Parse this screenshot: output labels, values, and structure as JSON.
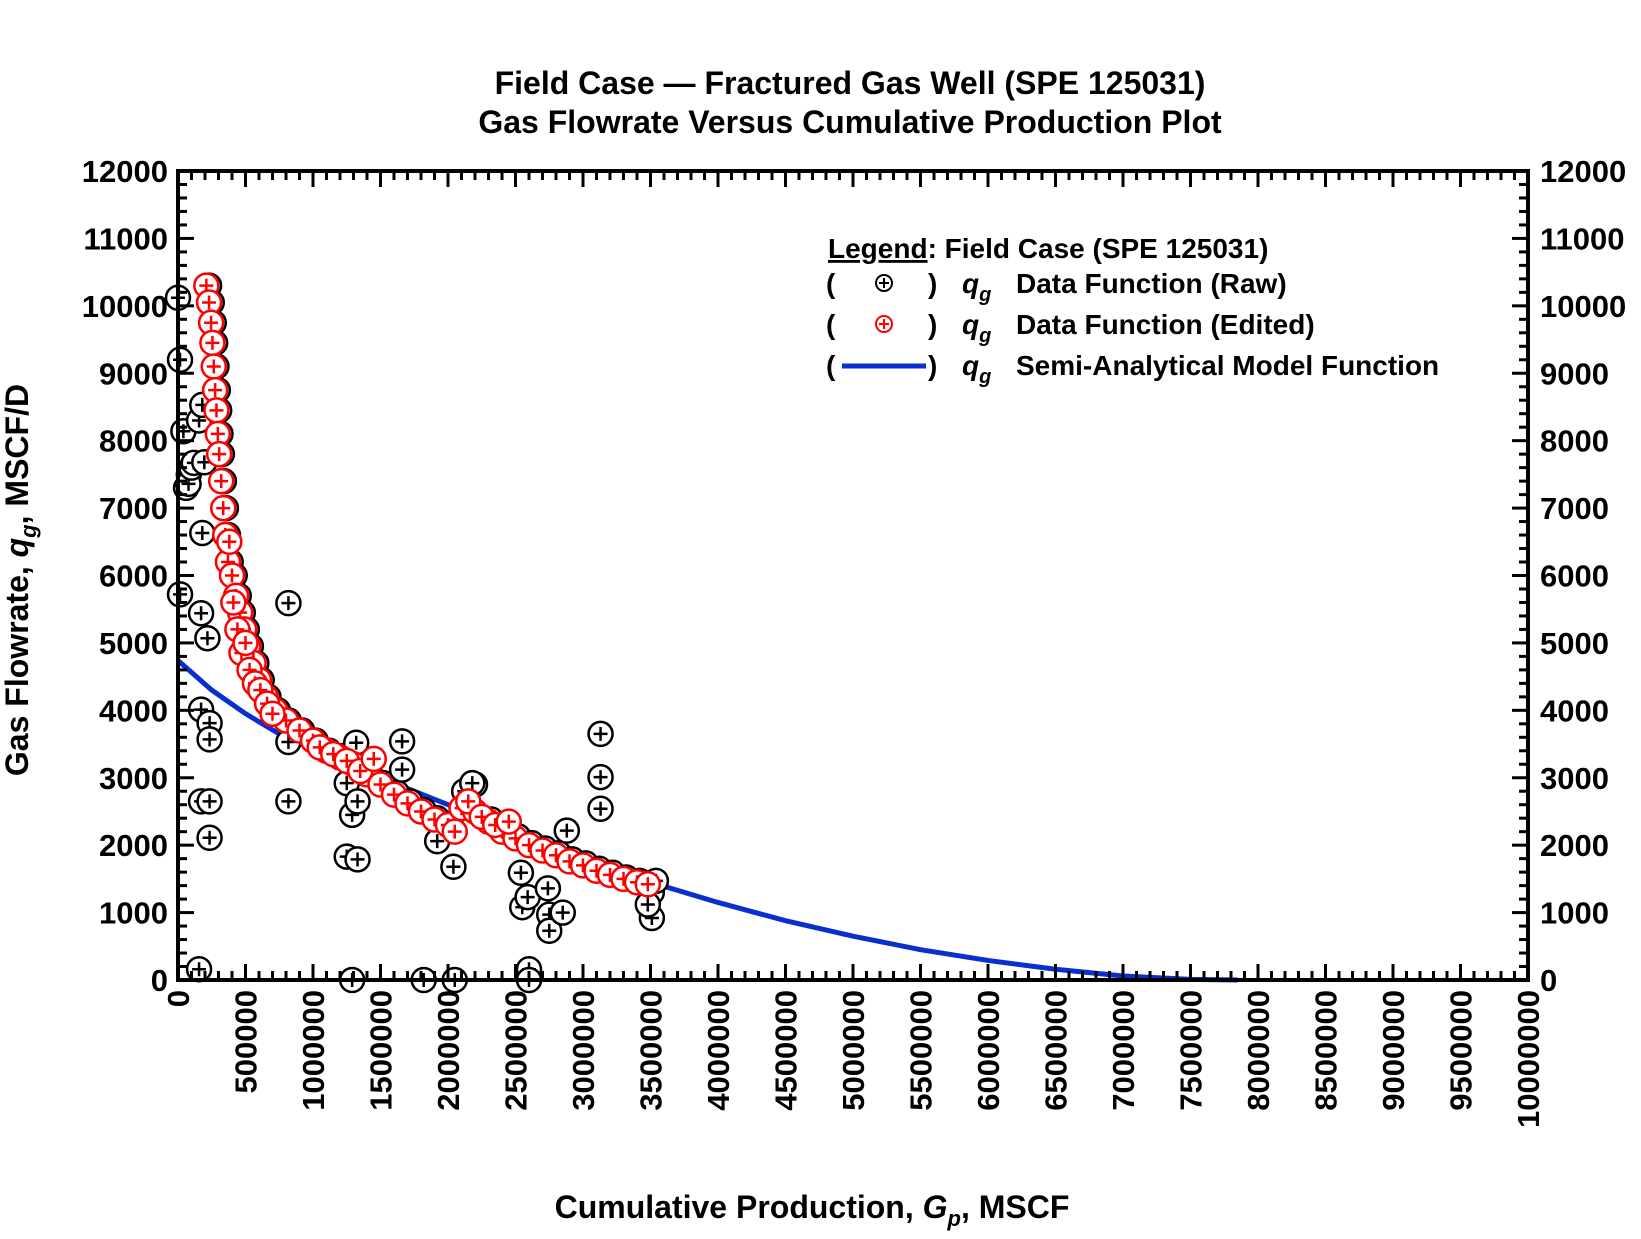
{
  "chart_data": {
    "type": "scatter",
    "title": "Field Case — Fractured Gas Well (SPE 125031)",
    "subtitle": "Gas Flowrate Versus Cumulative Production Plot",
    "xlabel": {
      "prefix": "Cumulative Production, ",
      "symbol": "G",
      "sub": "p",
      "suffix": ", MSCF"
    },
    "ylabel": {
      "prefix": "Gas Flowrate, ",
      "symbol": "q",
      "sub": "g",
      "suffix": ", MSCF/D"
    },
    "xlim": [
      0,
      10000000
    ],
    "ylim": [
      0,
      12000
    ],
    "x_ticks": [
      "0",
      "500000",
      "1000000",
      "1500000",
      "2000000",
      "2500000",
      "3000000",
      "3500000",
      "4000000",
      "4500000",
      "5000000",
      "5500000",
      "6000000",
      "6500000",
      "7000000",
      "7500000",
      "8000000",
      "8500000",
      "9000000",
      "9500000",
      "10000000"
    ],
    "y_ticks": [
      "0",
      "1000",
      "2000",
      "3000",
      "4000",
      "5000",
      "6000",
      "7000",
      "8000",
      "9000",
      "10000",
      "11000",
      "12000"
    ],
    "grid": false,
    "legend": {
      "placement": "top-right",
      "heading": "Legend",
      "heading_suffix": ":  Field Case (SPE 125031)",
      "entries": [
        {
          "symbol": "q",
          "sub": "g",
          "label": "Data Function (Raw)"
        },
        {
          "symbol": "q",
          "sub": "g",
          "label": "Data Function (Edited)"
        },
        {
          "symbol": "q",
          "sub": "g",
          "label": "Semi-Analytical Model Function"
        }
      ]
    },
    "colors": {
      "raw": "#000000",
      "edited": "#ff0000",
      "model": "#0a2fd0"
    },
    "series": [
      {
        "name": "Data Function (Raw)",
        "marker": "circle-plus",
        "points": [
          [
            0,
            10120
          ],
          [
            15000,
            9200
          ],
          [
            15000,
            5720
          ],
          [
            40000,
            8140
          ],
          [
            60000,
            7300
          ],
          [
            80000,
            7500
          ],
          [
            78000,
            7360
          ],
          [
            100000,
            7600
          ],
          [
            117000,
            7670
          ],
          [
            156000,
            8300
          ],
          [
            180000,
            8530
          ],
          [
            195000,
            7680
          ],
          [
            180000,
            6630
          ],
          [
            171000,
            5440
          ],
          [
            218000,
            5070
          ],
          [
            171000,
            4010
          ],
          [
            234000,
            3810
          ],
          [
            234000,
            3570
          ],
          [
            171000,
            2650
          ],
          [
            234000,
            2650
          ],
          [
            234000,
            2110
          ],
          [
            156000,
            160
          ],
          [
            230000,
            10300
          ],
          [
            250000,
            10050
          ],
          [
            265000,
            9750
          ],
          [
            275000,
            9450
          ],
          [
            285000,
            9100
          ],
          [
            295000,
            8750
          ],
          [
            305000,
            8450
          ],
          [
            315000,
            8100
          ],
          [
            325000,
            7800
          ],
          [
            340000,
            7400
          ],
          [
            355000,
            7000
          ],
          [
            370000,
            6600
          ],
          [
            390000,
            6200
          ],
          [
            420000,
            6000
          ],
          [
            450000,
            5700
          ],
          [
            480000,
            5450
          ],
          [
            510000,
            5200
          ],
          [
            540000,
            4950
          ],
          [
            580000,
            4700
          ],
          [
            620000,
            4450
          ],
          [
            670000,
            4200
          ],
          [
            740000,
            4000
          ],
          [
            820000,
            3850
          ],
          [
            920000,
            3700
          ],
          [
            1020000,
            3550
          ],
          [
            1120000,
            3400
          ],
          [
            1220000,
            3320
          ],
          [
            1320000,
            3520
          ],
          [
            1420000,
            3080
          ],
          [
            1520000,
            2920
          ],
          [
            1620000,
            2780
          ],
          [
            1720000,
            2650
          ],
          [
            1820000,
            2520
          ],
          [
            1920000,
            2400
          ],
          [
            2020000,
            2320
          ],
          [
            2120000,
            2800
          ],
          [
            2200000,
            2900
          ],
          [
            2320000,
            2380
          ],
          [
            2420000,
            2250
          ],
          [
            2520000,
            2130
          ],
          [
            2620000,
            2030
          ],
          [
            2720000,
            1950
          ],
          [
            2820000,
            1880
          ],
          [
            2920000,
            1790
          ],
          [
            3020000,
            1730
          ],
          [
            3120000,
            1650
          ],
          [
            3220000,
            1590
          ],
          [
            3320000,
            1520
          ],
          [
            3420000,
            1470
          ],
          [
            3510000,
            1300
          ],
          [
            818000,
            5590
          ],
          [
            818000,
            3530
          ],
          [
            818000,
            2650
          ],
          [
            1250000,
            2920
          ],
          [
            1290000,
            2450
          ],
          [
            1250000,
            1830
          ],
          [
            1330000,
            1790
          ],
          [
            1290000,
            0
          ],
          [
            1330000,
            2650
          ],
          [
            1660000,
            3540
          ],
          [
            1660000,
            3120
          ],
          [
            1820000,
            0
          ],
          [
            1920000,
            2060
          ],
          [
            2040000,
            1680
          ],
          [
            2050000,
            0
          ],
          [
            2180000,
            2920
          ],
          [
            2540000,
            1590
          ],
          [
            2550000,
            1080
          ],
          [
            2590000,
            1230
          ],
          [
            2600000,
            160
          ],
          [
            2600000,
            0
          ],
          [
            2750000,
            970
          ],
          [
            2750000,
            730
          ],
          [
            2850000,
            1000
          ],
          [
            2740000,
            1360
          ],
          [
            2880000,
            2215
          ],
          [
            3130000,
            3650
          ],
          [
            3130000,
            3010
          ],
          [
            3130000,
            2540
          ],
          [
            3510000,
            920
          ],
          [
            3480000,
            1120
          ],
          [
            3540000,
            1470
          ]
        ]
      },
      {
        "name": "Data Function (Edited)",
        "marker": "circle-plus",
        "points": [
          [
            210000,
            10300
          ],
          [
            230000,
            10050
          ],
          [
            245000,
            9750
          ],
          [
            255000,
            9450
          ],
          [
            265000,
            9100
          ],
          [
            275000,
            8750
          ],
          [
            285000,
            8450
          ],
          [
            295000,
            8100
          ],
          [
            305000,
            7800
          ],
          [
            320000,
            7400
          ],
          [
            335000,
            7000
          ],
          [
            350000,
            6600
          ],
          [
            370000,
            6200
          ],
          [
            400000,
            6000
          ],
          [
            430000,
            5700
          ],
          [
            460000,
            5450
          ],
          [
            490000,
            5200
          ],
          [
            520000,
            4950
          ],
          [
            560000,
            4700
          ],
          [
            600000,
            4450
          ],
          [
            650000,
            4200
          ],
          [
            720000,
            4000
          ],
          [
            800000,
            3850
          ],
          [
            900000,
            3700
          ],
          [
            1000000,
            3550
          ],
          [
            1100000,
            3400
          ],
          [
            1200000,
            3300
          ],
          [
            1300000,
            3200
          ],
          [
            1400000,
            3050
          ],
          [
            1500000,
            2900
          ],
          [
            1600000,
            2750
          ],
          [
            1700000,
            2620
          ],
          [
            1800000,
            2500
          ],
          [
            1900000,
            2380
          ],
          [
            2000000,
            2300
          ],
          [
            2100000,
            2550
          ],
          [
            2200000,
            2500
          ],
          [
            2300000,
            2350
          ],
          [
            2400000,
            2200
          ],
          [
            2500000,
            2100
          ],
          [
            2600000,
            2000
          ],
          [
            2700000,
            1920
          ],
          [
            2800000,
            1850
          ],
          [
            2900000,
            1760
          ],
          [
            3000000,
            1700
          ],
          [
            3100000,
            1620
          ],
          [
            3200000,
            1560
          ],
          [
            3300000,
            1500
          ],
          [
            3400000,
            1450
          ],
          [
            3480000,
            1420
          ],
          [
            380000,
            6500
          ],
          [
            410000,
            5600
          ],
          [
            440000,
            5200
          ],
          [
            470000,
            4850
          ],
          [
            500000,
            5000
          ],
          [
            530000,
            4600
          ],
          [
            570000,
            4400
          ],
          [
            610000,
            4300
          ],
          [
            660000,
            4100
          ],
          [
            700000,
            3950
          ],
          [
            1050000,
            3450
          ],
          [
            1150000,
            3350
          ],
          [
            1250000,
            3250
          ],
          [
            1350000,
            3100
          ],
          [
            1450000,
            3280
          ],
          [
            2050000,
            2200
          ],
          [
            2150000,
            2650
          ],
          [
            2250000,
            2420
          ],
          [
            2350000,
            2300
          ],
          [
            2450000,
            2350
          ]
        ]
      },
      {
        "name": "Semi-Analytical Model Function",
        "marker": "line",
        "points": [
          [
            0,
            4740
          ],
          [
            250000,
            4300
          ],
          [
            500000,
            3950
          ],
          [
            750000,
            3650
          ],
          [
            1000000,
            3420
          ],
          [
            1500000,
            3000
          ],
          [
            2000000,
            2600
          ],
          [
            2500000,
            2200
          ],
          [
            3000000,
            1800
          ],
          [
            3500000,
            1450
          ],
          [
            4000000,
            1150
          ],
          [
            4500000,
            880
          ],
          [
            5000000,
            650
          ],
          [
            5500000,
            450
          ],
          [
            6000000,
            290
          ],
          [
            6500000,
            160
          ],
          [
            7000000,
            60
          ],
          [
            7500000,
            10
          ],
          [
            7850000,
            0
          ]
        ]
      }
    ]
  }
}
